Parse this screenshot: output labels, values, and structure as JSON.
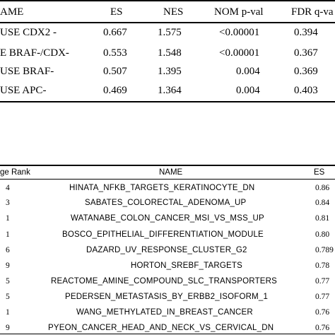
{
  "table1": {
    "headers": [
      "AME",
      "ES",
      "NES",
      "NOM p-val",
      "FDR q-va"
    ],
    "rows": [
      [
        "USE CDX2 -",
        "0.667",
        "1.575",
        "<0.00001",
        "0.394"
      ],
      [
        "E BRAF-/CDX-",
        "0.553",
        "1.548",
        "<0.00001",
        "0.367"
      ],
      [
        "USE BRAF-",
        "0.507",
        "1.395",
        "0.004",
        "0.369"
      ],
      [
        "USE APC-",
        "0.469",
        "1.364",
        "0.004",
        "0.403"
      ]
    ]
  },
  "table2": {
    "headers": [
      "ge Rank",
      "NAME",
      "ES"
    ],
    "rows": [
      [
        "4",
        "HINATA_NFKB_TARGETS_KERATINOCYTE_DN",
        "0.86"
      ],
      [
        "3",
        "SABATES_COLORECTAL_ADENOMA_UP",
        "0.84"
      ],
      [
        "1",
        "WATANABE_COLON_CANCER_MSI_VS_MSS_UP",
        "0.81"
      ],
      [
        "1",
        "BOSCO_EPITHELIAL_DIFFERENTIATION_MODULE",
        "0.80"
      ],
      [
        "6",
        "DAZARD_UV_RESPONSE_CLUSTER_G2",
        "0.789"
      ],
      [
        "9",
        "HORTON_SREBF_TARGETS",
        "0.78"
      ],
      [
        "5",
        "REACTOME_AMINE_COMPOUND_SLC_TRANSPORTERS",
        "0.77"
      ],
      [
        "5",
        "PEDERSEN_METASTASIS_BY_ERBB2_ISOFORM_1",
        "0.77"
      ],
      [
        "1",
        "WANG_METHYLATED_IN_BREAST_CANCER",
        "0.76"
      ],
      [
        "9",
        "PYEON_CANCER_HEAD_AND_NECK_VS_CERVICAL_DN",
        "0.76"
      ]
    ]
  }
}
